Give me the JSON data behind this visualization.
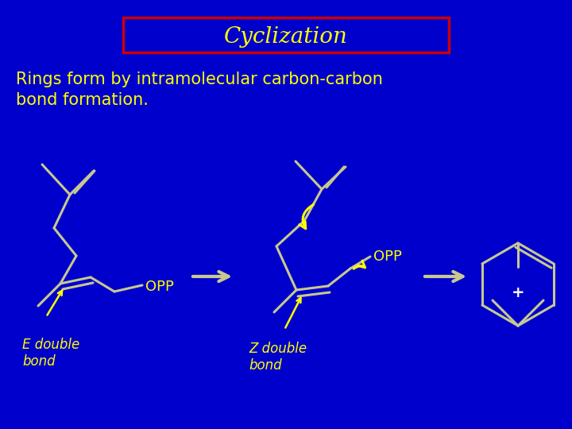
{
  "bg_color": "#0000CC",
  "title_text": "Cyclization",
  "title_color": "#FFFF00",
  "title_box_color": "#CC0000",
  "text_color": "#FFFF00",
  "body_text": "Rings form by intramolecular carbon-carbon\nbond formation.",
  "opp_label": "OPP",
  "e_label": "E double\nbond",
  "z_label": "Z double\nbond",
  "plus_label": "+",
  "mol_color": "#C8C890",
  "curve_arrow_color": "#FFFF00",
  "arrow_color": "#C8C890"
}
